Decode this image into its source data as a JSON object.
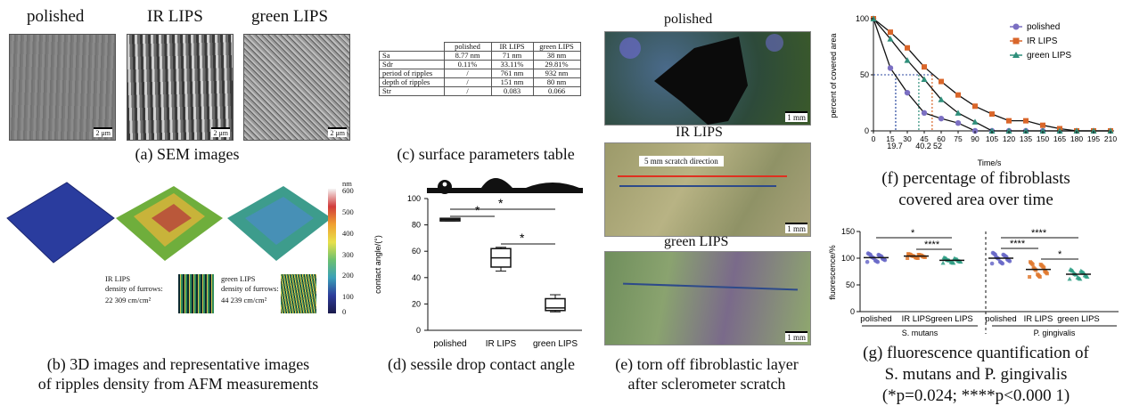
{
  "sem": {
    "titles": [
      "polished",
      "IR LIPS",
      "green LIPS"
    ],
    "scale": "2 μm",
    "caption": "(a) SEM images"
  },
  "afm": {
    "caption_line1": "(b) 3D images and representative images",
    "caption_line2": "of ripples density from AFM measurements",
    "colorbar_unit": "nm",
    "colorbar_ticks": [
      "600",
      "500",
      "400",
      "300",
      "200",
      "100",
      "0"
    ],
    "ir_label": [
      "IR LIPS",
      "density of furrows:",
      "22 309 cm/cm²"
    ],
    "green_label": [
      "green LIPS",
      "density of furrows:",
      "44 239 cm/cm²"
    ]
  },
  "table": {
    "caption": "(c) surface parameters table",
    "header": [
      "",
      "polished",
      "IR LIPS",
      "green LIPS"
    ],
    "rows": [
      [
        "Sa",
        "8.77 nm",
        "71 nm",
        "38 nm"
      ],
      [
        "Sdr",
        "0.11%",
        "33.11%",
        "29.81%"
      ],
      [
        "period of ripples",
        "/",
        "761 nm",
        "932 nm"
      ],
      [
        "depth of ripples",
        "/",
        "151 nm",
        "80 nm"
      ],
      [
        "Str",
        "/",
        "0.083",
        "0.066"
      ]
    ]
  },
  "contact": {
    "caption": "(d) sessile drop contact angle",
    "ylabel": "contact angle/(°)",
    "yticks": [
      "0",
      "20",
      "40",
      "60",
      "80",
      "100"
    ],
    "xlabels": [
      "polished",
      "IR LIPS",
      "green LIPS"
    ],
    "sig": [
      "*",
      "*",
      "*"
    ]
  },
  "scratch": {
    "titles": [
      "polished",
      "IR LIPS",
      "green LIPS"
    ],
    "scale": "1 mm",
    "direction": "5 mm scratch direction",
    "caption_line1": "(e) torn off fibroblastic layer",
    "caption_line2": "after sclerometer scratch"
  },
  "coverage": {
    "caption_line1": "(f) percentage of fibroblasts",
    "caption_line2": "covered area over time",
    "ylabel": "percent of covered area",
    "xlabel": "Time/s",
    "xticks": [
      "0",
      "15",
      "30",
      "45",
      "60",
      "75",
      "90",
      "105",
      "120",
      "135",
      "150",
      "165",
      "180",
      "195",
      "210"
    ],
    "yticks": [
      "0",
      "50",
      "100"
    ],
    "markers": [
      "19.7",
      "40.2",
      "52"
    ],
    "legend": [
      "polished",
      "IR LIPS",
      "green LIPS"
    ],
    "colors": {
      "polished": "#7b6fc2",
      "ir": "#d9662a",
      "green": "#2f8f7b"
    }
  },
  "fluor": {
    "caption_line1": "(g) fluorescence quantification of",
    "caption_line2": "S. mutans and P. gingivalis",
    "caption_line3": "(*p=0.024; ****p<0.000 1)",
    "ylabel": "fluorescence/%",
    "yticks": [
      "0",
      "50",
      "100",
      "150"
    ],
    "xlabels": [
      "polished",
      "IR LIPS",
      "green LIPS",
      "polished",
      "IR LIPS",
      "green LIPS"
    ],
    "groups": [
      "S. mutans",
      "P. gingivalis"
    ],
    "sig": [
      "*",
      "****",
      "****",
      "****",
      "*"
    ]
  },
  "chart_data": [
    {
      "type": "line",
      "title": "",
      "xlabel": "Time/s",
      "ylabel": "percent of covered area",
      "x": [
        0,
        15,
        30,
        45,
        60,
        75,
        90,
        105,
        120,
        135,
        150,
        165,
        180,
        195,
        210
      ],
      "ylim": [
        0,
        100
      ],
      "series": [
        {
          "name": "polished",
          "values": [
            100,
            56,
            34,
            16,
            11,
            7,
            0,
            0,
            0,
            0,
            0,
            0,
            0,
            0,
            0
          ]
        },
        {
          "name": "IR LIPS",
          "values": [
            100,
            88,
            74,
            57,
            44,
            32,
            22,
            15,
            9,
            9,
            5,
            2,
            0,
            0,
            0
          ]
        },
        {
          "name": "green LIPS",
          "values": [
            100,
            82,
            63,
            46,
            28,
            16,
            8,
            0,
            0,
            0,
            0,
            0,
            0,
            0,
            0
          ]
        }
      ]
    },
    {
      "type": "box",
      "ylabel": "contact angle/(°)",
      "categories": [
        "polished",
        "IR LIPS",
        "green LIPS"
      ],
      "values": [
        {
          "min": 83,
          "q1": 83,
          "median": 84,
          "q3": 85,
          "max": 85
        },
        {
          "min": 45,
          "q1": 48,
          "median": 55,
          "q3": 62,
          "max": 63
        },
        {
          "min": 14,
          "q1": 15,
          "median": 17,
          "q3": 24,
          "max": 27
        }
      ],
      "ylim": [
        0,
        100
      ]
    },
    {
      "type": "scatter",
      "ylabel": "fluorescence/%",
      "categories": [
        "polished",
        "IR LIPS",
        "green LIPS",
        "polished",
        "IR LIPS",
        "green LIPS"
      ],
      "means": [
        101,
        104,
        96,
        100,
        79,
        70
      ],
      "ylim": [
        0,
        150
      ]
    }
  ]
}
